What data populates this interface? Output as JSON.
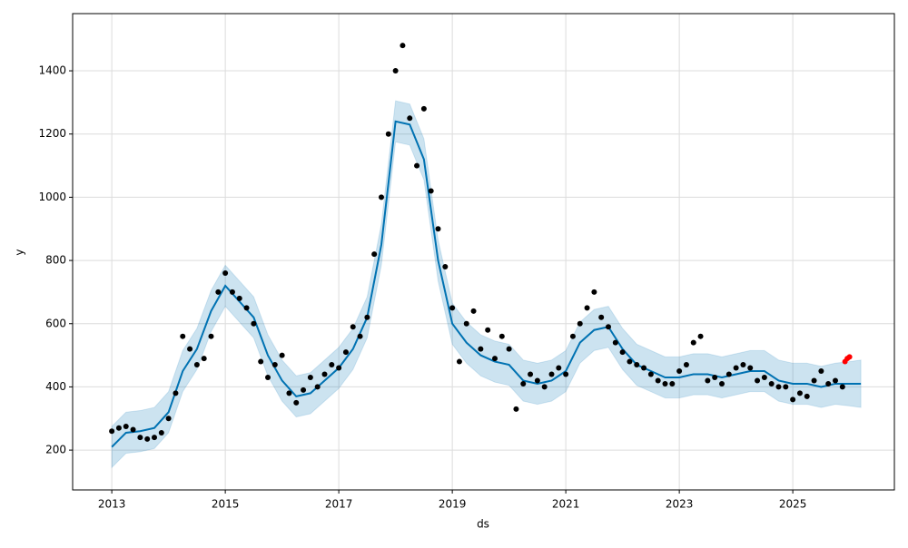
{
  "chart_data": {
    "type": "forecast",
    "xlabel": "ds",
    "ylabel": "y",
    "xlim": [
      2012.31,
      2026.79
    ],
    "xticks": [
      2013,
      2015,
      2017,
      2019,
      2021,
      2023,
      2025
    ],
    "ylim": [
      74,
      1581
    ],
    "yticks": [
      200,
      400,
      600,
      800,
      1000,
      1200,
      1400
    ],
    "grid": true,
    "forecast": {
      "color": "#0072B2",
      "x": [
        2013.0,
        2013.25,
        2013.5,
        2013.75,
        2014.0,
        2014.25,
        2014.5,
        2014.75,
        2015.0,
        2015.25,
        2015.5,
        2015.75,
        2016.0,
        2016.25,
        2016.5,
        2016.75,
        2017.0,
        2017.25,
        2017.5,
        2017.75,
        2018.0,
        2018.25,
        2018.5,
        2018.75,
        2019.0,
        2019.25,
        2019.5,
        2019.75,
        2020.0,
        2020.25,
        2020.5,
        2020.75,
        2021.0,
        2021.25,
        2021.5,
        2021.75,
        2022.0,
        2022.25,
        2022.5,
        2022.75,
        2023.0,
        2023.25,
        2023.5,
        2023.75,
        2024.0,
        2024.25,
        2024.5,
        2024.75,
        2025.0,
        2025.25,
        2025.5,
        2025.75,
        2026.0,
        2026.2
      ],
      "yhat": [
        210,
        255,
        260,
        270,
        320,
        450,
        520,
        640,
        720,
        670,
        620,
        500,
        420,
        370,
        380,
        420,
        460,
        520,
        620,
        850,
        1240,
        1230,
        1120,
        800,
        600,
        540,
        500,
        480,
        470,
        420,
        410,
        420,
        450,
        540,
        580,
        590,
        520,
        470,
        450,
        430,
        430,
        440,
        440,
        430,
        440,
        450,
        450,
        420,
        410,
        410,
        400,
        410,
        410,
        410
      ],
      "lower": [
        145,
        190,
        195,
        205,
        255,
        385,
        455,
        575,
        655,
        605,
        555,
        435,
        355,
        305,
        315,
        355,
        395,
        455,
        555,
        785,
        1175,
        1165,
        1055,
        735,
        535,
        475,
        435,
        415,
        405,
        355,
        345,
        355,
        385,
        475,
        515,
        525,
        455,
        405,
        385,
        365,
        365,
        375,
        375,
        365,
        375,
        385,
        385,
        355,
        345,
        345,
        335,
        345,
        340,
        335
      ],
      "upper": [
        275,
        320,
        325,
        335,
        385,
        515,
        585,
        705,
        785,
        735,
        685,
        565,
        485,
        435,
        445,
        485,
        525,
        585,
        685,
        915,
        1305,
        1295,
        1185,
        865,
        665,
        605,
        565,
        545,
        535,
        485,
        475,
        485,
        515,
        605,
        645,
        655,
        585,
        535,
        515,
        495,
        495,
        505,
        505,
        495,
        505,
        515,
        515,
        485,
        475,
        475,
        465,
        475,
        480,
        485
      ]
    },
    "observed": {
      "color": "#000000",
      "x": [
        2013.0,
        2013.125,
        2013.25,
        2013.375,
        2013.5,
        2013.625,
        2013.75,
        2013.875,
        2014.0,
        2014.125,
        2014.25,
        2014.375,
        2014.5,
        2014.625,
        2014.75,
        2014.875,
        2015.0,
        2015.125,
        2015.25,
        2015.375,
        2015.5,
        2015.625,
        2015.75,
        2015.875,
        2016.0,
        2016.125,
        2016.25,
        2016.375,
        2016.5,
        2016.625,
        2016.75,
        2016.875,
        2017.0,
        2017.125,
        2017.25,
        2017.375,
        2017.5,
        2017.625,
        2017.75,
        2017.875,
        2018.0,
        2018.125,
        2018.25,
        2018.375,
        2018.5,
        2018.625,
        2018.75,
        2018.875,
        2019.0,
        2019.125,
        2019.25,
        2019.375,
        2019.5,
        2019.625,
        2019.75,
        2019.875,
        2020.0,
        2020.125,
        2020.25,
        2020.375,
        2020.5,
        2020.625,
        2020.75,
        2020.875,
        2021.0,
        2021.125,
        2021.25,
        2021.375,
        2021.5,
        2021.625,
        2021.75,
        2021.875,
        2022.0,
        2022.125,
        2022.25,
        2022.375,
        2022.5,
        2022.625,
        2022.75,
        2022.875,
        2023.0,
        2023.125,
        2023.25,
        2023.375,
        2023.5,
        2023.625,
        2023.75,
        2023.875,
        2024.0,
        2024.125,
        2024.25,
        2024.375,
        2024.5,
        2024.625,
        2024.75,
        2024.875,
        2025.0,
        2025.125,
        2025.25,
        2025.375,
        2025.5,
        2025.625,
        2025.75,
        2025.875
      ],
      "values": [
        260,
        270,
        275,
        265,
        240,
        235,
        240,
        255,
        300,
        380,
        560,
        520,
        470,
        490,
        560,
        700,
        760,
        700,
        680,
        650,
        600,
        480,
        430,
        470,
        500,
        380,
        350,
        390,
        430,
        400,
        440,
        470,
        460,
        510,
        590,
        560,
        620,
        820,
        1000,
        1200,
        1400,
        1480,
        1250,
        1100,
        1280,
        1020,
        900,
        780,
        650,
        480,
        600,
        640,
        520,
        580,
        490,
        560,
        520,
        330,
        410,
        440,
        420,
        400,
        440,
        460,
        440,
        560,
        600,
        650,
        700,
        620,
        590,
        540,
        510,
        480,
        470,
        460,
        440,
        420,
        410,
        410,
        450,
        470,
        540,
        560,
        420,
        430,
        410,
        440,
        460,
        470,
        460,
        420,
        430,
        410,
        400,
        400,
        360,
        380,
        370,
        420,
        450,
        410,
        420,
        400
      ]
    },
    "future": {
      "color": "#ff0000",
      "x": [
        2025.92,
        2025.96,
        2026.0
      ],
      "values": [
        480,
        490,
        495
      ]
    }
  }
}
